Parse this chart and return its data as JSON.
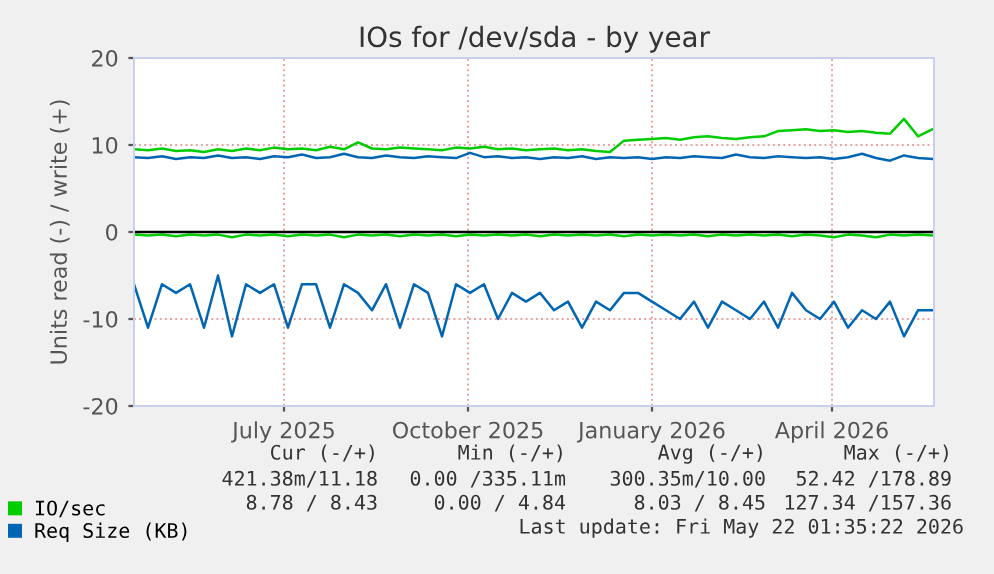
{
  "chart_data": {
    "type": "line",
    "title": "IOs for /dev/sda - by year",
    "ylabel": "Units read (-) / write (+)",
    "x": [
      "2025-04-17",
      "2025-04-24",
      "2025-05-01",
      "2025-05-08",
      "2025-05-15",
      "2025-05-22",
      "2025-05-29",
      "2025-06-05",
      "2025-06-12",
      "2025-06-19",
      "2025-06-26",
      "2025-07-03",
      "2025-07-10",
      "2025-07-17",
      "2025-07-24",
      "2025-07-31",
      "2025-08-07",
      "2025-08-14",
      "2025-08-21",
      "2025-08-28",
      "2025-09-04",
      "2025-09-11",
      "2025-09-18",
      "2025-09-25",
      "2025-10-02",
      "2025-10-09",
      "2025-10-16",
      "2025-10-23",
      "2025-10-30",
      "2025-11-06",
      "2025-11-13",
      "2025-11-20",
      "2025-11-27",
      "2025-12-04",
      "2025-12-11",
      "2025-12-18",
      "2025-12-25",
      "2026-01-01",
      "2026-01-08",
      "2026-01-15",
      "2026-01-22",
      "2026-01-29",
      "2026-02-05",
      "2026-02-12",
      "2026-02-19",
      "2026-02-26",
      "2026-03-05",
      "2026-03-12",
      "2026-03-19",
      "2026-03-26",
      "2026-04-02",
      "2026-04-09",
      "2026-04-16",
      "2026-04-23",
      "2026-04-30",
      "2026-05-07",
      "2026-05-14",
      "2026-05-21"
    ],
    "series": [
      {
        "name": "IO/sec",
        "color": "#00cc00",
        "values": [
          9.5,
          9.4,
          9.6,
          9.3,
          9.4,
          9.2,
          9.5,
          9.3,
          9.6,
          9.4,
          9.7,
          9.5,
          9.6,
          9.4,
          9.8,
          9.5,
          10.3,
          9.6,
          9.5,
          9.7,
          9.6,
          9.5,
          9.4,
          9.7,
          9.6,
          9.8,
          9.5,
          9.6,
          9.4,
          9.5,
          9.6,
          9.4,
          9.5,
          9.3,
          9.2,
          10.5,
          10.6,
          10.7,
          10.8,
          10.6,
          10.9,
          11.0,
          10.8,
          10.7,
          10.9,
          11.0,
          11.6,
          11.7,
          11.8,
          11.6,
          11.7,
          11.5,
          11.6,
          11.4,
          11.3,
          13.0,
          11.0,
          11.8
        ]
      },
      {
        "color": "#00cc00",
        "values": [
          -0.3,
          -0.4,
          -0.3,
          -0.5,
          -0.3,
          -0.4,
          -0.3,
          -0.6,
          -0.3,
          -0.4,
          -0.3,
          -0.5,
          -0.3,
          -0.4,
          -0.3,
          -0.6,
          -0.3,
          -0.4,
          -0.3,
          -0.5,
          -0.3,
          -0.4,
          -0.3,
          -0.5,
          -0.3,
          -0.4,
          -0.3,
          -0.4,
          -0.3,
          -0.5,
          -0.3,
          -0.4,
          -0.3,
          -0.4,
          -0.3,
          -0.5,
          -0.3,
          -0.4,
          -0.3,
          -0.4,
          -0.3,
          -0.5,
          -0.3,
          -0.4,
          -0.3,
          -0.4,
          -0.3,
          -0.5,
          -0.3,
          -0.4,
          -0.6,
          -0.3,
          -0.4,
          -0.6,
          -0.3,
          -0.4,
          -0.3,
          -0.4
        ]
      },
      {
        "name": "Req Size (KB)",
        "color": "#0066b3",
        "values": [
          8.6,
          8.5,
          8.7,
          8.4,
          8.6,
          8.5,
          8.8,
          8.5,
          8.6,
          8.4,
          8.7,
          8.6,
          8.9,
          8.5,
          8.6,
          9.0,
          8.6,
          8.5,
          8.8,
          8.6,
          8.5,
          8.7,
          8.6,
          8.5,
          9.1,
          8.6,
          8.7,
          8.5,
          8.6,
          8.4,
          8.6,
          8.5,
          8.7,
          8.4,
          8.6,
          8.5,
          8.6,
          8.4,
          8.6,
          8.5,
          8.7,
          8.6,
          8.5,
          8.9,
          8.6,
          8.5,
          8.7,
          8.6,
          8.5,
          8.6,
          8.4,
          8.6,
          9.0,
          8.5,
          8.2,
          8.8,
          8.5,
          8.4
        ]
      },
      {
        "color": "#0066b3",
        "values": [
          -6,
          -11,
          -6,
          -7,
          -6,
          -11,
          -5,
          -12,
          -6,
          -7,
          -6,
          -11,
          -6,
          -6,
          -11,
          -6,
          -7,
          -9,
          -6,
          -11,
          -6,
          -7,
          -12,
          -6,
          -7,
          -6,
          -10,
          -7,
          -8,
          -7,
          -9,
          -8,
          -11,
          -8,
          -9,
          -7,
          -7,
          -8,
          -9,
          -10,
          -8,
          -11,
          -8,
          -9,
          -10,
          -8,
          -11,
          -7,
          -9,
          -10,
          -8,
          -11,
          -9,
          -10,
          -8,
          -12,
          -9,
          -9
        ]
      }
    ],
    "xlim": [
      "2025-04-17",
      "2026-05-22"
    ],
    "xticks": [
      {
        "value": "2025-07-01",
        "label": "July 2025"
      },
      {
        "value": "2025-10-01",
        "label": "October 2025"
      },
      {
        "value": "2026-01-01",
        "label": "January 2026"
      },
      {
        "value": "2026-04-01",
        "label": "April 2026"
      }
    ],
    "ylim": [
      -20,
      20
    ],
    "yticks": [
      -20,
      -10,
      0,
      10,
      20
    ],
    "ref_lines": [
      {
        "axis": "y",
        "value": 0,
        "color": "#000000"
      }
    ],
    "grid": true,
    "legend": "bottom left",
    "annotations": [
      "Cur (-/+)",
      "Min (-/+)",
      "Avg (-/+)",
      "Max (-/+)",
      "421.38m/11.18",
      "0.00 /335.11m",
      "300.35m/10.00",
      "52.42 /178.89",
      "8.78 / 8.43",
      "0.00 / 4.84",
      "8.03 / 8.45",
      "127.34 /157.36",
      "Last update: Fri May 22 01:35:22 2026"
    ]
  }
}
